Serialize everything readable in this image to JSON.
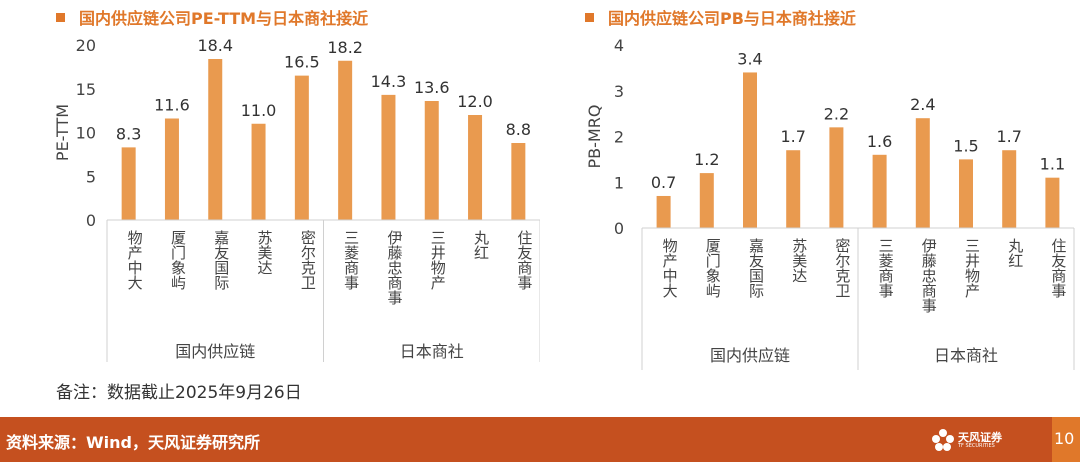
{
  "chart_data": [
    {
      "type": "bar",
      "title": "国内供应链公司PE-TTM与日本商社接近",
      "ylabel": "PE-TTM",
      "ylim": [
        0,
        20
      ],
      "yticks": [
        0,
        5,
        10,
        15,
        20
      ],
      "categories": [
        "物产中大",
        "厦门象屿",
        "嘉友国际",
        "苏美达",
        "密尔克卫",
        "三菱商事",
        "伊藤忠商事",
        "三井物产",
        "丸红",
        "住友商事"
      ],
      "values": [
        8.3,
        11.6,
        18.4,
        11.0,
        16.5,
        18.2,
        14.3,
        13.6,
        12.0,
        8.8
      ],
      "labels": [
        "8.3",
        "11.6",
        "18.4",
        "11.0",
        "16.5",
        "18.2",
        "14.3",
        "13.6",
        "12.0",
        "8.8"
      ],
      "groups": [
        {
          "name": "国内供应链",
          "count": 5
        },
        {
          "name": "日本商社",
          "count": 5
        }
      ],
      "bar_color": "#e99a4f",
      "grid": false
    },
    {
      "type": "bar",
      "title": "国内供应链公司PB与日本商社接近",
      "ylabel": "PB-MRQ",
      "ylim": [
        0,
        4
      ],
      "yticks": [
        0,
        1,
        2,
        3,
        4
      ],
      "categories": [
        "物产中大",
        "厦门象屿",
        "嘉友国际",
        "苏美达",
        "密尔克卫",
        "三菱商事",
        "伊藤忠商事",
        "三井物产",
        "丸红",
        "住友商事"
      ],
      "values": [
        0.7,
        1.2,
        3.4,
        1.7,
        2.2,
        1.6,
        2.4,
        1.5,
        1.7,
        1.1
      ],
      "labels": [
        "0.7",
        "1.2",
        "3.4",
        "1.7",
        "2.2",
        "1.6",
        "2.4",
        "1.5",
        "1.7",
        "1.1"
      ],
      "groups": [
        {
          "name": "国内供应链",
          "count": 5
        },
        {
          "name": "日本商社",
          "count": 5
        }
      ],
      "bar_color": "#e99a4f",
      "grid": false
    }
  ],
  "note": "备注：数据截止2025年9月26日",
  "footer": {
    "source": "资料来源：Wind，天风证券研究所",
    "logo_text": "天风证券",
    "logo_sub": "TF SECURITIES",
    "page": "10"
  },
  "colors": {
    "accent": "#e0782a",
    "footer_bg": "#c5501f",
    "bar": "#e99a4f"
  }
}
